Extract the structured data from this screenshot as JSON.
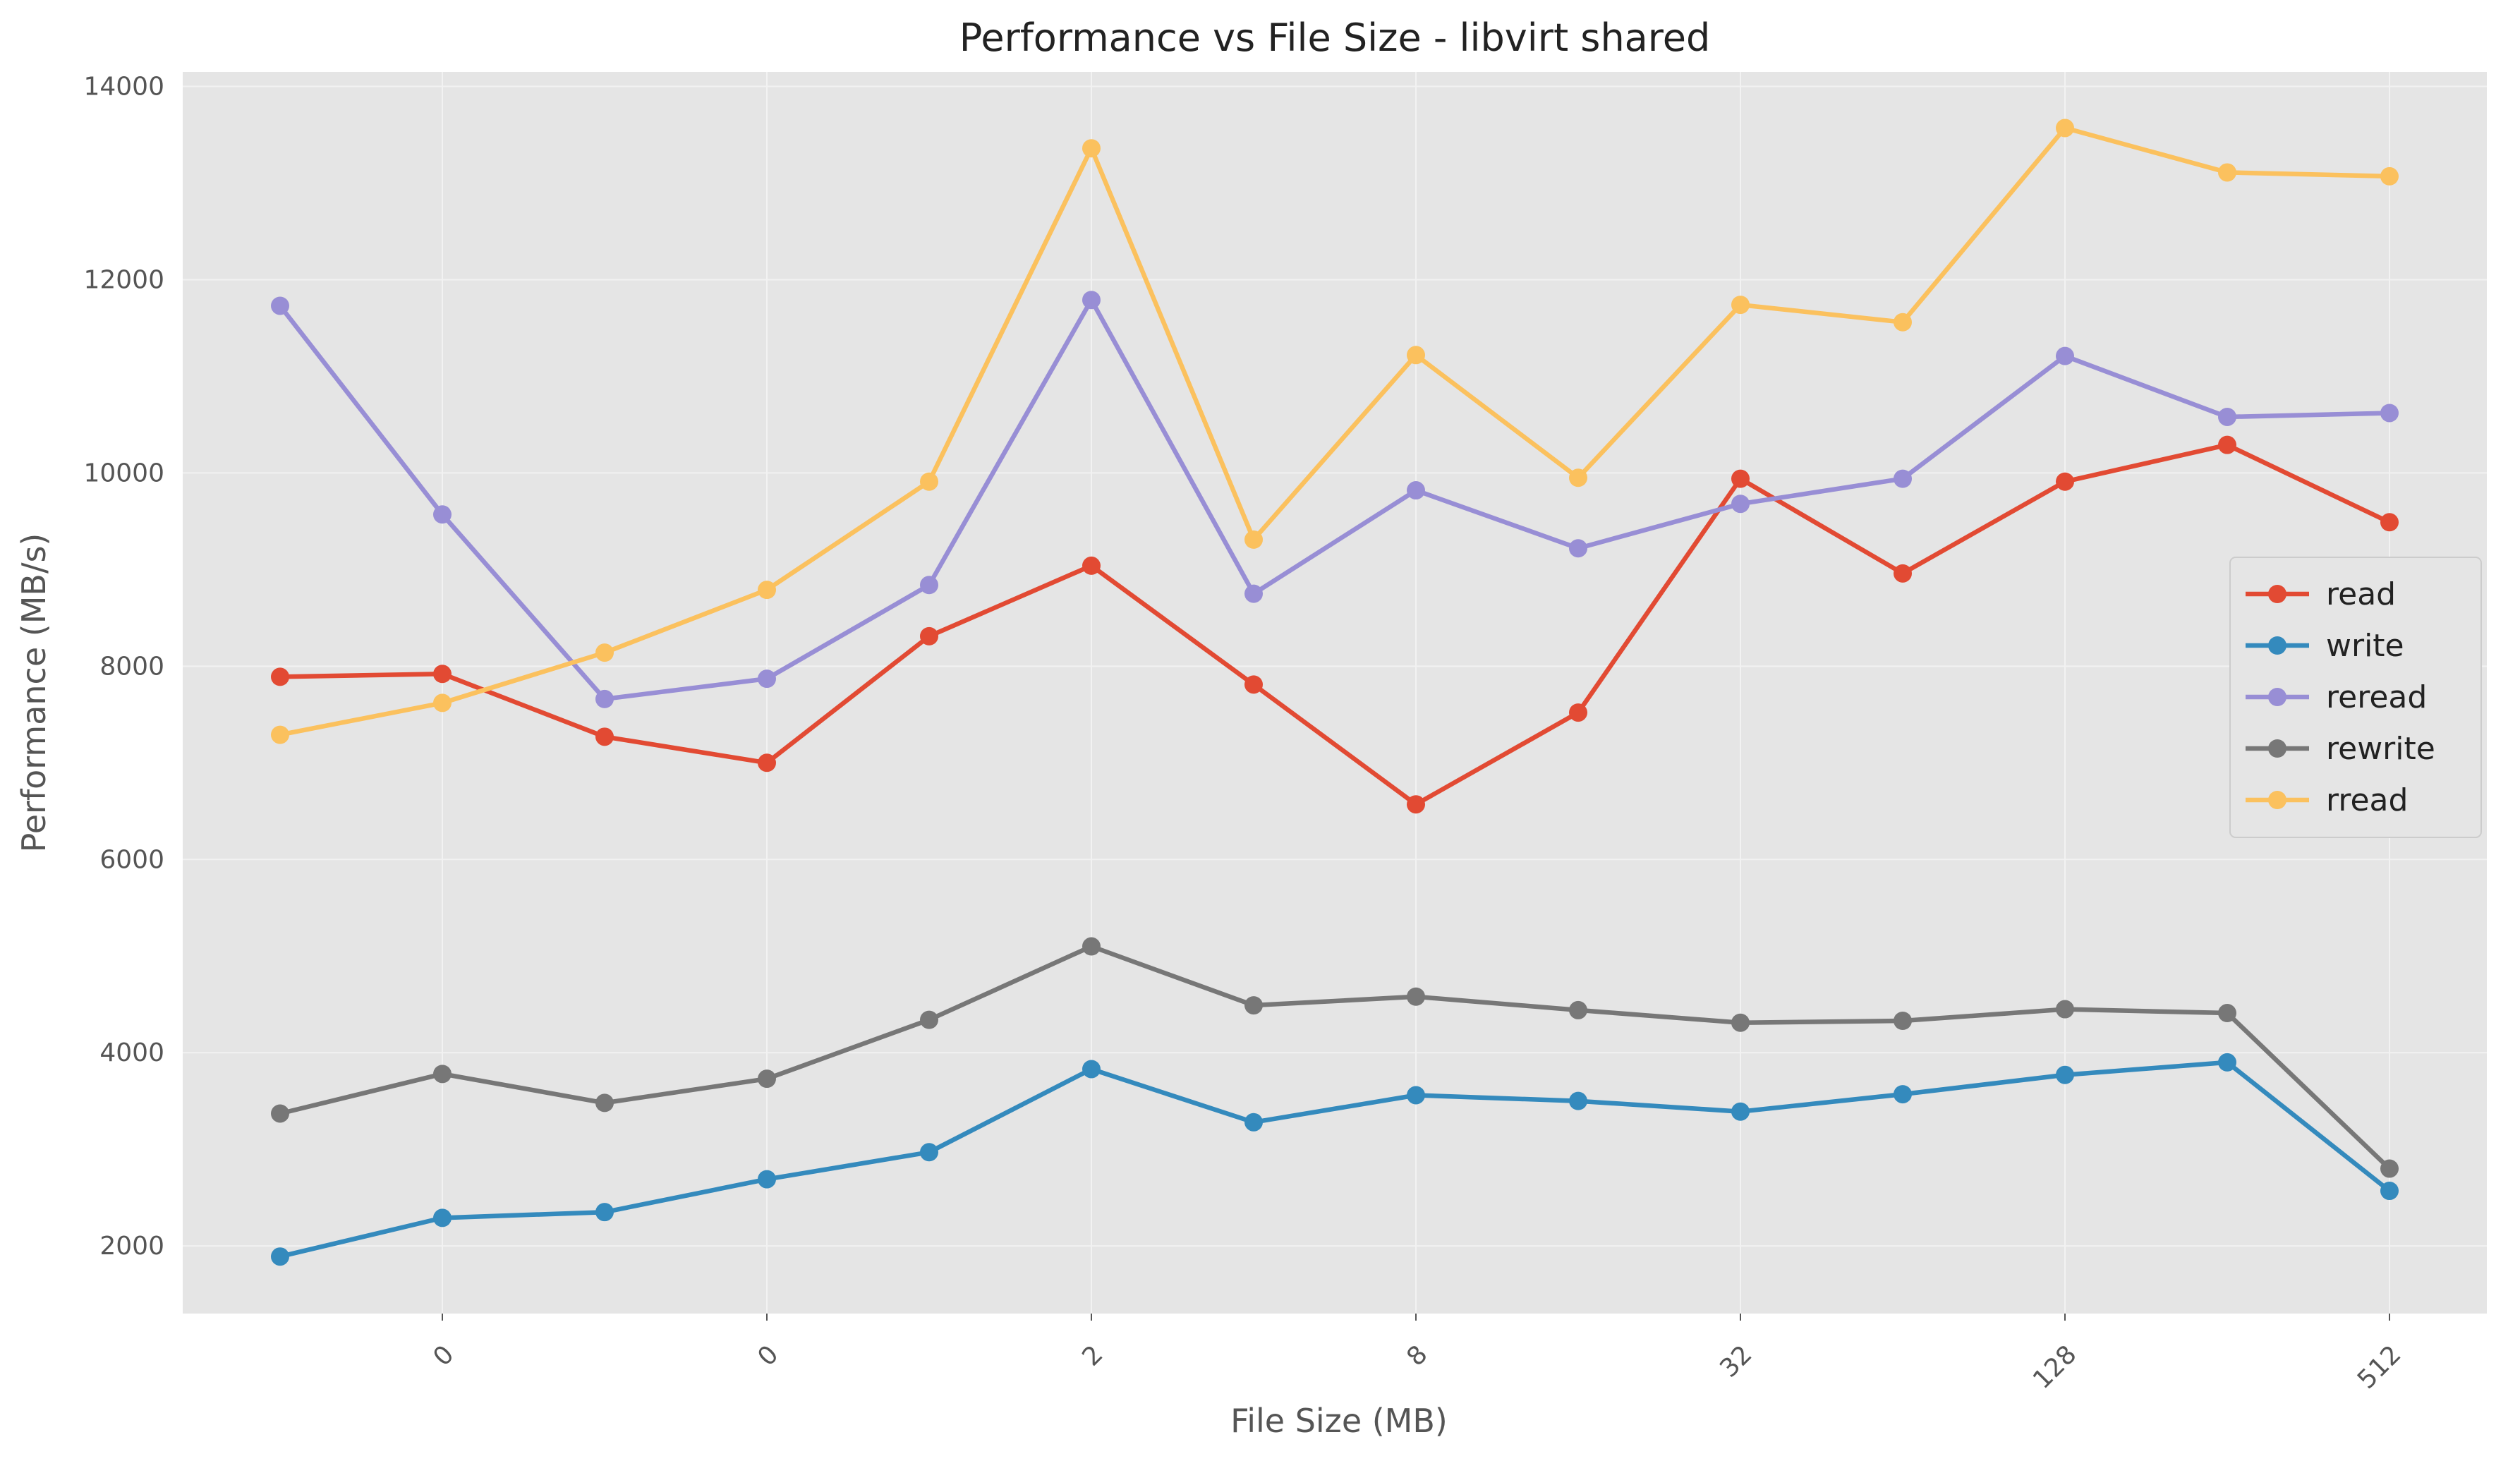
{
  "chart_data": {
    "type": "line",
    "title": "Performance vs File Size - libvirt shared",
    "xlabel": "File Size (MB)",
    "ylabel": "Performance (MB/s)",
    "x": [
      0,
      1,
      2,
      3,
      4,
      5,
      6,
      7,
      8,
      9,
      10,
      11,
      12,
      13
    ],
    "x_tick_positions": [
      1,
      3,
      5,
      7,
      9,
      11,
      13
    ],
    "x_tick_labels": [
      "0",
      "0",
      "2",
      "8",
      "32",
      "128",
      "512"
    ],
    "x_tick_rotation": 45,
    "xlim": [
      -0.6,
      13.6
    ],
    "ylim": [
      1300,
      14150
    ],
    "y_ticks": [
      2000,
      4000,
      6000,
      8000,
      10000,
      12000,
      14000
    ],
    "grid": true,
    "legend_position": "center-right",
    "background": "#e5e5e5",
    "series": [
      {
        "name": "read",
        "color": "#e24a33",
        "values": [
          7890,
          7920,
          7270,
          7000,
          8310,
          9040,
          7810,
          6570,
          7520,
          9940,
          8960,
          9910,
          10290,
          9490
        ]
      },
      {
        "name": "write",
        "color": "#348abd",
        "values": [
          1890,
          2290,
          2350,
          2690,
          2970,
          3830,
          3280,
          3560,
          3500,
          3390,
          3570,
          3770,
          3900,
          2570
        ]
      },
      {
        "name": "reread",
        "color": "#988ed5",
        "values": [
          11730,
          9570,
          7660,
          7870,
          8840,
          11790,
          8750,
          9820,
          9220,
          9680,
          9940,
          11210,
          10580,
          10620
        ]
      },
      {
        "name": "rewrite",
        "color": "#777777",
        "values": [
          3370,
          3780,
          3480,
          3730,
          4340,
          5100,
          4490,
          4580,
          4440,
          4310,
          4330,
          4450,
          4410,
          2800
        ]
      },
      {
        "name": "rread",
        "color": "#fbc15e",
        "values": [
          7290,
          7620,
          8140,
          8790,
          9910,
          13360,
          9310,
          11220,
          9950,
          11740,
          11560,
          13570,
          13110,
          13070
        ]
      }
    ]
  }
}
